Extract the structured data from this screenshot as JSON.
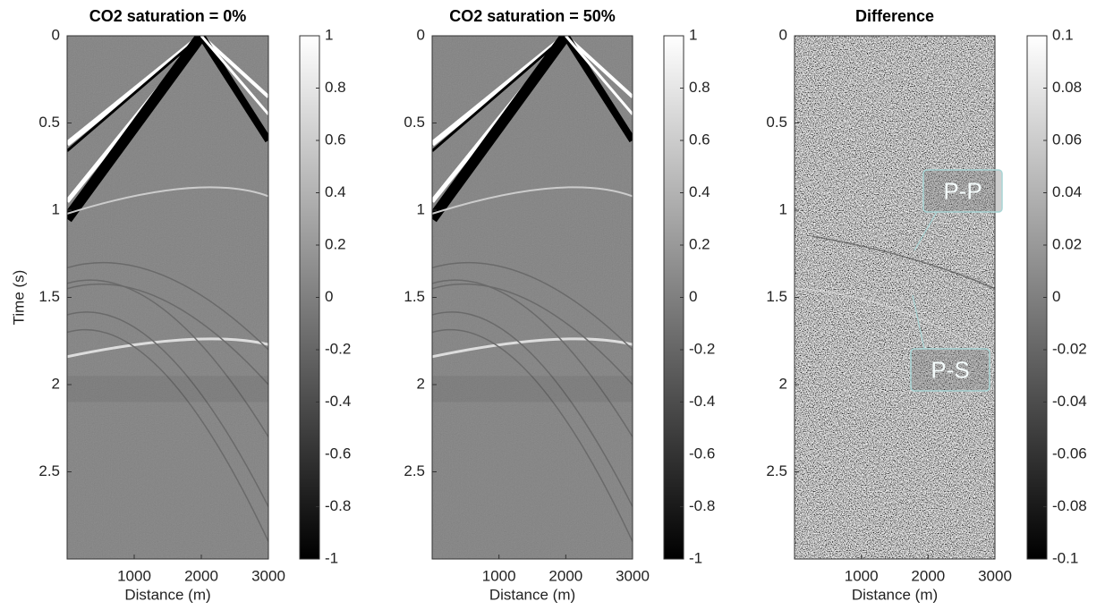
{
  "chart_data": [
    {
      "type": "heatmap",
      "title": "CO2 saturation = 0%",
      "xlabel": "Distance (m)",
      "ylabel": "Time (s)",
      "xlim": [
        0,
        3000
      ],
      "xticks": [
        1000,
        2000,
        3000
      ],
      "ylim": [
        0,
        3
      ],
      "yticks": [
        0,
        0.5,
        1,
        1.5,
        2,
        2.5
      ],
      "y_reversed": true,
      "clim": [
        -1,
        1
      ],
      "cticks": [
        1,
        0.8,
        0.6,
        0.4,
        0.2,
        0,
        -0.2,
        -0.4,
        -0.6,
        -0.8,
        -1
      ],
      "colormap": "gray"
    },
    {
      "type": "heatmap",
      "title": "CO2 saturation = 50%",
      "xlabel": "Distance (m)",
      "xlim": [
        0,
        3000
      ],
      "xticks": [
        1000,
        2000,
        3000
      ],
      "ylim": [
        0,
        3
      ],
      "yticks": [
        0,
        0.5,
        1,
        1.5,
        2,
        2.5
      ],
      "y_reversed": true,
      "clim": [
        -1,
        1
      ],
      "cticks": [
        1,
        0.8,
        0.6,
        0.4,
        0.2,
        0,
        -0.2,
        -0.4,
        -0.6,
        -0.8,
        -1
      ],
      "colormap": "gray"
    },
    {
      "type": "heatmap",
      "title": "Difference",
      "xlabel": "Distance (m)",
      "xlim": [
        0,
        3000
      ],
      "xticks": [
        1000,
        2000,
        3000
      ],
      "ylim": [
        0,
        3
      ],
      "yticks": [
        0,
        0.5,
        1,
        1.5,
        2,
        2.5
      ],
      "y_reversed": true,
      "clim": [
        -0.1,
        0.1
      ],
      "cticks": [
        0.1,
        0.08,
        0.06,
        0.04,
        0.02,
        0,
        -0.02,
        -0.04,
        -0.06,
        -0.08,
        -0.1
      ],
      "colormap": "gray",
      "annotations": [
        "P-P",
        "P-S"
      ]
    }
  ]
}
